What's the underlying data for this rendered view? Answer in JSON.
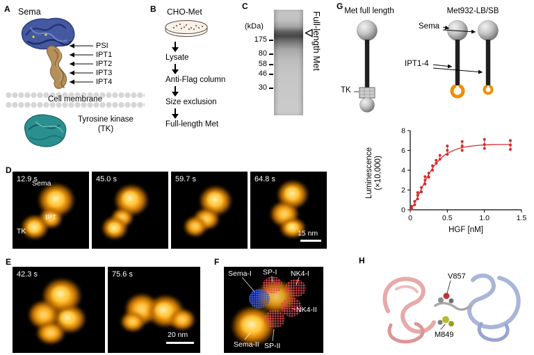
{
  "panels": {
    "A": {
      "label": "A",
      "title": "Sema",
      "domain_labels": [
        "PSI",
        "IPT1",
        "IPT2",
        "IPT3",
        "IPT4"
      ],
      "membrane_label": "Cell membrane",
      "kinase_line1": "Tyrosine kinase",
      "kinase_line2": "(TK)"
    },
    "B": {
      "label": "B",
      "title": "CHO-Met",
      "steps": [
        "Lysate",
        "Anti-Flag column",
        "Size exclusion",
        "Full-length Met"
      ]
    },
    "C": {
      "label": "C",
      "units": "(kDa)",
      "markers": [
        "175",
        "80",
        "58",
        "46",
        "30"
      ],
      "band_label": "Full-length Met"
    },
    "D": {
      "label": "D",
      "times": [
        "12.9 s",
        "45.0 s",
        "59.7 s",
        "64.8 s"
      ],
      "annotations": [
        "Sema",
        "IPT",
        "TK"
      ],
      "scalebar": "15 nm"
    },
    "E": {
      "label": "E",
      "times": [
        "42.3 s",
        "75.6 s"
      ],
      "scalebar": "20 nm"
    },
    "F": {
      "label": "F",
      "annotations": [
        "Sema-I",
        "SP-I",
        "NK4-I",
        "NK4-II",
        "SP-II",
        "Sema-II"
      ]
    },
    "G": {
      "label": "G",
      "construct_left": "Met full length",
      "construct_right": "Met932-LB/SB",
      "sema_label": "Sema",
      "ipt_label": "IPT1-4",
      "tk_label": "TK"
    },
    "H": {
      "label": "H",
      "residue_labels": [
        "V857",
        "M849"
      ]
    }
  },
  "chart_data": {
    "type": "scatter",
    "title": "",
    "xlabel": "HGF [nM]",
    "ylabel": "Luminescence (×10,000)",
    "ylabel_lines": [
      "Luminescence",
      "(×10,000)"
    ],
    "xlim": [
      0,
      1.5
    ],
    "ylim": [
      0,
      8
    ],
    "xticks": [
      0,
      0.5,
      1.0,
      1.5
    ],
    "xtick_labels": [
      "0",
      "0.5",
      "1.0",
      "1.5"
    ],
    "yticks": [
      0,
      2,
      4,
      6,
      8
    ],
    "grid": false,
    "legend": "none",
    "point_color": "#d62b2b",
    "points": [
      [
        0.02,
        0.1
      ],
      [
        0.02,
        0.35
      ],
      [
        0.06,
        0.5
      ],
      [
        0.06,
        0.85
      ],
      [
        0.1,
        1.1
      ],
      [
        0.1,
        1.45
      ],
      [
        0.1,
        1.75
      ],
      [
        0.15,
        1.8
      ],
      [
        0.15,
        2.25
      ],
      [
        0.2,
        2.6
      ],
      [
        0.2,
        3.0
      ],
      [
        0.2,
        3.35
      ],
      [
        0.25,
        3.3
      ],
      [
        0.25,
        3.7
      ],
      [
        0.3,
        4.0
      ],
      [
        0.3,
        4.45
      ],
      [
        0.35,
        4.7
      ],
      [
        0.35,
        5.0
      ],
      [
        0.4,
        5.1
      ],
      [
        0.4,
        5.5
      ],
      [
        0.5,
        5.6
      ],
      [
        0.5,
        6.0
      ],
      [
        0.5,
        6.45
      ],
      [
        0.7,
        6.0
      ],
      [
        0.7,
        6.45
      ],
      [
        0.7,
        6.9
      ],
      [
        1.0,
        6.2
      ],
      [
        1.0,
        6.6
      ],
      [
        1.0,
        7.1
      ],
      [
        1.35,
        6.1
      ],
      [
        1.35,
        6.55
      ],
      [
        1.35,
        7.0
      ]
    ],
    "fit_curve": [
      [
        0,
        0
      ],
      [
        0.05,
        0.5
      ],
      [
        0.1,
        1.3
      ],
      [
        0.15,
        2.1
      ],
      [
        0.2,
        2.9
      ],
      [
        0.25,
        3.6
      ],
      [
        0.3,
        4.2
      ],
      [
        0.35,
        4.7
      ],
      [
        0.4,
        5.1
      ],
      [
        0.45,
        5.45
      ],
      [
        0.5,
        5.7
      ],
      [
        0.6,
        6.05
      ],
      [
        0.7,
        6.3
      ],
      [
        0.8,
        6.42
      ],
      [
        0.9,
        6.5
      ],
      [
        1.0,
        6.55
      ],
      [
        1.1,
        6.58
      ],
      [
        1.2,
        6.6
      ],
      [
        1.35,
        6.6
      ]
    ]
  },
  "colors": {
    "afm_orange": "#ff9e00",
    "chart_red": "#d62b2b",
    "sema_blue": "#44599f",
    "ipt_tan": "#b5905b",
    "tk_teal": "#2c8f8f",
    "ribbon_pink": "#e7a9a9",
    "ribbon_blue": "#a9b5da",
    "crescent_orange": "#ef8e00"
  }
}
